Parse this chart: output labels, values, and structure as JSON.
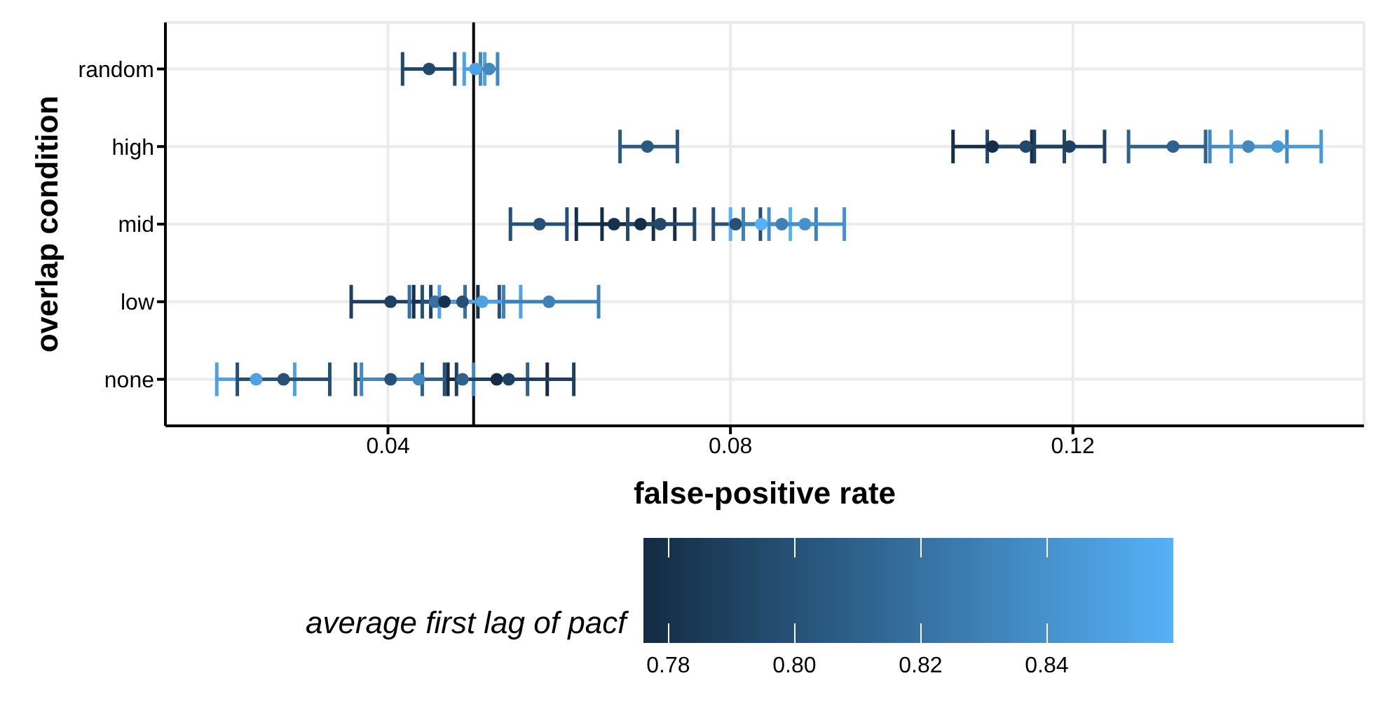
{
  "chart_data": {
    "type": "scatter",
    "orientation": "horizontal",
    "xlabel": "false-positive rate",
    "ylabel": "overlap condition",
    "legend_title": "average first lag of pacf",
    "grid": true,
    "marker": "circle",
    "categories": [
      "random",
      "high",
      "mid",
      "low",
      "none"
    ],
    "xlim": [
      0.014,
      0.154
    ],
    "xticks": [
      0.04,
      0.08,
      0.12
    ],
    "clim": [
      0.776,
      0.86
    ],
    "cticks": [
      {
        "value": 0.78,
        "label": "0.78"
      },
      {
        "value": 0.8,
        "label": "0.80"
      },
      {
        "value": 0.82,
        "label": "0.82"
      },
      {
        "value": 0.84,
        "label": "0.84"
      }
    ],
    "ref_lines": [
      {
        "axis": "x",
        "value": 0.05,
        "color": "#000000"
      }
    ],
    "series": [
      {
        "x": [
          "random",
          "random",
          "random"
        ],
        "values": [
          0.0448,
          0.0502,
          0.0518
        ],
        "errors": [
          [
            0.0417,
            0.0478
          ],
          [
            0.0489,
            0.0513
          ],
          [
            0.0508,
            0.0528
          ]
        ],
        "cvalues": [
          0.795,
          0.85,
          0.835
        ],
        "colors": [
          "#22496c",
          "#4ea1e2",
          "#4289c1"
        ]
      },
      {
        "x": [
          "high",
          "high",
          "high",
          "high",
          "high",
          "high",
          "high"
        ],
        "values": [
          0.0703,
          0.1106,
          0.1145,
          0.1196,
          0.1317,
          0.1405,
          0.1439
        ],
        "errors": [
          [
            0.0671,
            0.0738
          ],
          [
            0.106,
            0.1152
          ],
          [
            0.11,
            0.119
          ],
          [
            0.1155,
            0.1237
          ],
          [
            0.1265,
            0.1355
          ],
          [
            0.136,
            0.145
          ],
          [
            0.1385,
            0.149
          ]
        ],
        "cvalues": [
          0.805,
          0.778,
          0.795,
          0.79,
          0.81,
          0.835,
          0.845
        ],
        "colors": [
          "#2a5981",
          "#152e47",
          "#22496c",
          "#1e4161",
          "#2e618c",
          "#4289c1",
          "#4a99d7"
        ]
      },
      {
        "x": [
          "mid",
          "mid",
          "mid",
          "mid",
          "mid",
          "mid",
          "mid",
          "mid"
        ],
        "values": [
          0.0577,
          0.0664,
          0.0695,
          0.0718,
          0.0806,
          0.0836,
          0.086,
          0.0887
        ],
        "errors": [
          [
            0.0543,
            0.0609
          ],
          [
            0.062,
            0.071
          ],
          [
            0.065,
            0.0735
          ],
          [
            0.068,
            0.0758
          ],
          [
            0.078,
            0.0835
          ],
          [
            0.08,
            0.087
          ],
          [
            0.0815,
            0.09
          ],
          [
            0.0845,
            0.0933
          ]
        ],
        "cvalues": [
          0.8,
          0.78,
          0.778,
          0.795,
          0.8,
          0.86,
          0.83,
          0.84
        ],
        "colors": [
          "#265176",
          "#16314c",
          "#152e47",
          "#22496c",
          "#265176",
          "#56b1f7",
          "#3e81b7",
          "#4691cc"
        ]
      },
      {
        "x": [
          "low",
          "low",
          "low",
          "low",
          "low",
          "low"
        ],
        "values": [
          0.0403,
          0.0455,
          0.0466,
          0.0487,
          0.051,
          0.0588
        ],
        "errors": [
          [
            0.0357,
            0.045
          ],
          [
            0.0425,
            0.049
          ],
          [
            0.043,
            0.0505
          ],
          [
            0.044,
            0.053
          ],
          [
            0.046,
            0.0555
          ],
          [
            0.0535,
            0.0646
          ]
        ],
        "cvalues": [
          0.79,
          0.82,
          0.78,
          0.8,
          0.85,
          0.83
        ],
        "colors": [
          "#1e4161",
          "#3671a1",
          "#16314c",
          "#265176",
          "#4ea1e2",
          "#3e81b7"
        ]
      },
      {
        "x": [
          "none",
          "none",
          "none",
          "none",
          "none",
          "none",
          "none"
        ],
        "values": [
          0.0246,
          0.0278,
          0.0403,
          0.0436,
          0.0487,
          0.0527,
          0.0541
        ],
        "errors": [
          [
            0.02,
            0.0291
          ],
          [
            0.0224,
            0.0332
          ],
          [
            0.0362,
            0.0466
          ],
          [
            0.0369,
            0.05
          ],
          [
            0.044,
            0.0563
          ],
          [
            0.047,
            0.0586
          ],
          [
            0.048,
            0.0617
          ]
        ],
        "cvalues": [
          0.85,
          0.8,
          0.8,
          0.835,
          0.81,
          0.777,
          0.79
        ],
        "colors": [
          "#4ea1e2",
          "#265176",
          "#265176",
          "#4289c1",
          "#2e618c",
          "#142d45",
          "#1e4161"
        ]
      }
    ]
  }
}
